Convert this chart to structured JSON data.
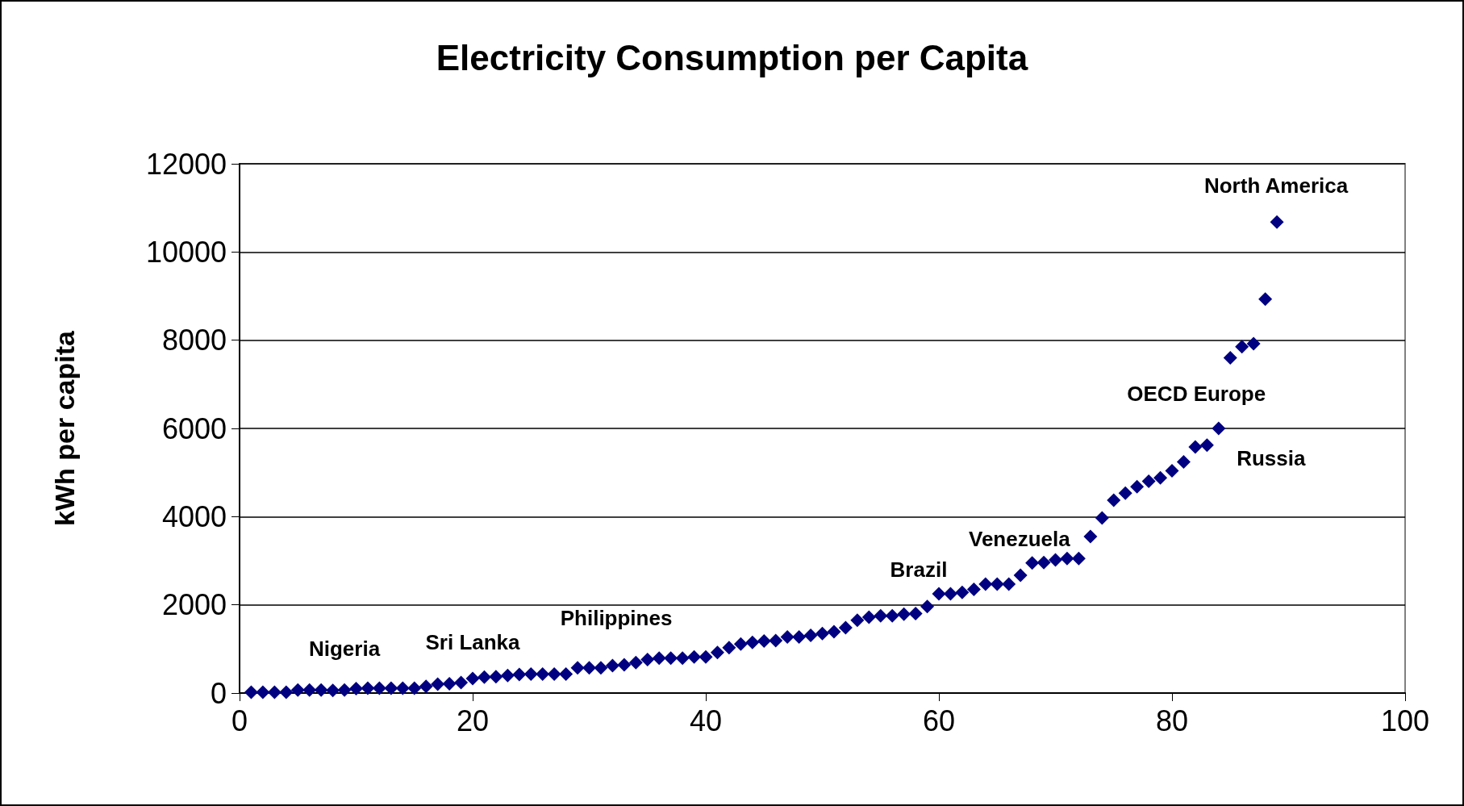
{
  "chart_data": {
    "type": "scatter",
    "title": "Electricity Consumption per Capita",
    "ylabel": "kWh per capita",
    "x": [
      1,
      2,
      3,
      4,
      5,
      6,
      7,
      8,
      9,
      10,
      11,
      12,
      13,
      14,
      15,
      16,
      17,
      18,
      19,
      20,
      21,
      22,
      23,
      24,
      25,
      26,
      27,
      28,
      29,
      30,
      31,
      32,
      33,
      34,
      35,
      36,
      37,
      38,
      39,
      40,
      41,
      42,
      43,
      44,
      45,
      46,
      47,
      48,
      49,
      50,
      51,
      52,
      53,
      54,
      55,
      56,
      57,
      58,
      59,
      60,
      61,
      62,
      63,
      64,
      65,
      66,
      67,
      68,
      69,
      70,
      71,
      72,
      73,
      74,
      75,
      76,
      77,
      78,
      79,
      80,
      81,
      82,
      83,
      84,
      85,
      86,
      87,
      88,
      89
    ],
    "series": [
      {
        "color": "#000080",
        "values": [
          20,
          20,
          20,
          20,
          70,
          70,
          70,
          60,
          70,
          100,
          110,
          110,
          110,
          110,
          110,
          150,
          200,
          210,
          240,
          330,
          360,
          370,
          400,
          420,
          430,
          430,
          430,
          430,
          570,
          570,
          570,
          620,
          640,
          690,
          760,
          790,
          790,
          790,
          820,
          820,
          920,
          1030,
          1110,
          1150,
          1180,
          1190,
          1270,
          1270,
          1310,
          1350,
          1390,
          1480,
          1650,
          1720,
          1750,
          1750,
          1790,
          1800,
          1960,
          2250,
          2250,
          2280,
          2350,
          2470,
          2470,
          2470,
          2670,
          2950,
          2960,
          3020,
          3050,
          3050,
          3550,
          3970,
          4370,
          4530,
          4680,
          4800,
          4880,
          5040,
          5240,
          5580,
          5620,
          6000,
          7600,
          7850,
          7920,
          8930,
          10680
        ]
      }
    ],
    "annotations": [
      {
        "text": "Nigeria",
        "x": 9,
        "y": 70
      },
      {
        "text": "Sri Lanka",
        "x": 20,
        "y": 330
      },
      {
        "text": "Philippines",
        "x": 29,
        "y": 570
      },
      {
        "text": "Brazil",
        "x": 60,
        "y": 2250
      },
      {
        "text": "Venezuela",
        "x": 73,
        "y": 3550
      },
      {
        "text": "OECD Europe",
        "x": 85,
        "y": 7600
      },
      {
        "text": "Russia",
        "x": 84,
        "y": 6000
      },
      {
        "text": "North America",
        "x": 89,
        "y": 10680
      }
    ],
    "xlim": [
      0,
      100
    ],
    "xticks": [
      0,
      20,
      40,
      60,
      80,
      100
    ],
    "ylim": [
      0,
      12000
    ],
    "yticks": [
      0,
      2000,
      4000,
      6000,
      8000,
      10000,
      12000
    ],
    "grid": "y",
    "marker": "diamond"
  }
}
